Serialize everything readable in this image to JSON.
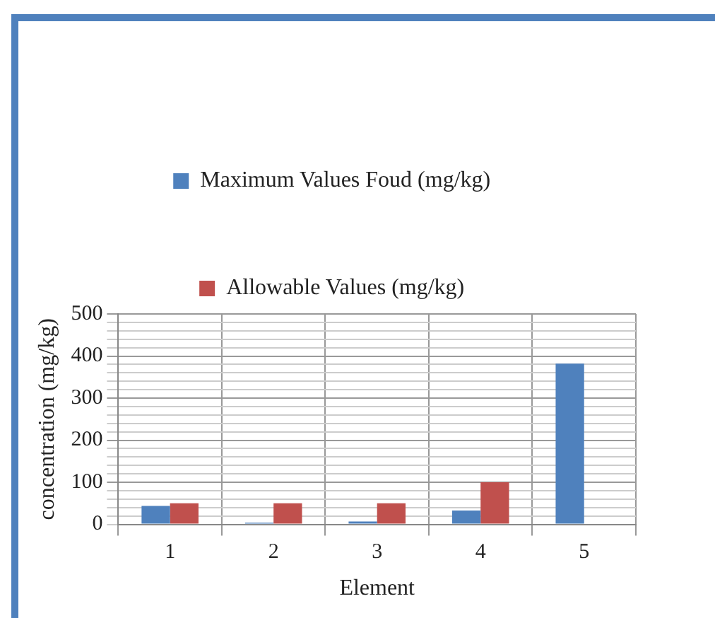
{
  "chart_data": {
    "type": "bar",
    "xlabel": "Element",
    "ylabel": "concentration (mg/kg)",
    "categories": [
      "1",
      "2",
      "3",
      "4",
      "5"
    ],
    "series": [
      {
        "name": "Maximum Values Foud (mg/kg)",
        "color": "#4f81bd",
        "values": [
          44,
          4,
          7,
          33,
          382
        ]
      },
      {
        "name": "Allowable Values (mg/kg)",
        "color": "#c0504d",
        "values": [
          50,
          50,
          50,
          100,
          null
        ]
      }
    ],
    "ylim": [
      0,
      500
    ],
    "yticks": [
      0,
      {
        "value": 20,
        "label": null
      },
      {
        "value": 40,
        "label": null
      },
      {
        "value": 60,
        "label": null
      },
      {
        "value": 80,
        "label": null
      },
      100,
      {
        "value": 120,
        "label": null
      },
      {
        "value": 140,
        "label": null
      },
      {
        "value": 160,
        "label": null
      },
      {
        "value": 180,
        "label": null
      },
      200,
      {
        "value": 220,
        "label": null
      },
      {
        "value": 240,
        "label": null
      },
      {
        "value": 260,
        "label": null
      },
      {
        "value": 280,
        "label": null
      },
      300,
      {
        "value": 320,
        "label": null
      },
      {
        "value": 340,
        "label": null
      },
      {
        "value": 360,
        "label": null
      },
      {
        "value": 380,
        "label": null
      },
      400,
      {
        "value": 420,
        "label": null
      },
      {
        "value": 440,
        "label": null
      },
      {
        "value": 460,
        "label": null
      },
      {
        "value": 480,
        "label": null
      },
      500
    ],
    "grid": true,
    "legend": "top"
  }
}
